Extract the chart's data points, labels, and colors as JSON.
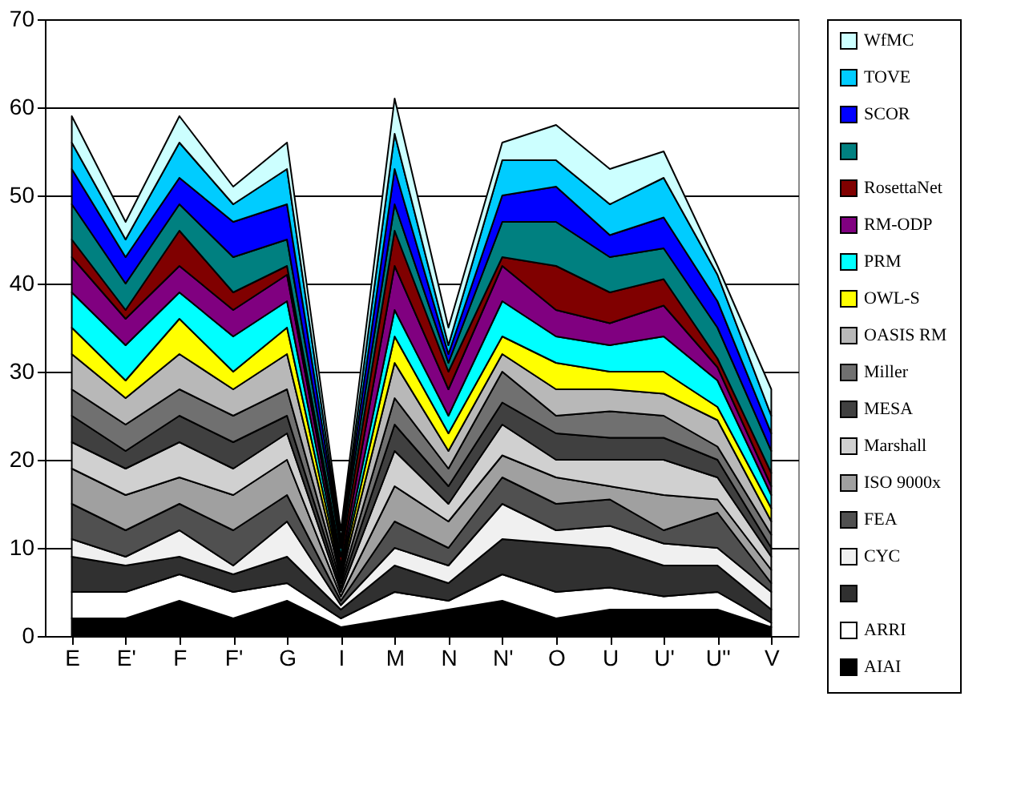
{
  "chart_data": {
    "type": "area",
    "stacked": true,
    "categories": [
      "E",
      "E'",
      "F",
      "F'",
      "G",
      "I",
      "M",
      "N",
      "N'",
      "O",
      "U",
      "U'",
      "U''",
      "V"
    ],
    "ylim": [
      0,
      70
    ],
    "yticks": [
      0,
      10,
      20,
      30,
      40,
      50,
      60,
      70
    ],
    "grid": "y",
    "legend": "right",
    "series": [
      {
        "name": "AIAI",
        "color": "#000000",
        "values": [
          2,
          2,
          4,
          2,
          4,
          1,
          2,
          3,
          4,
          2,
          3,
          3,
          3,
          1
        ]
      },
      {
        "name": "ARRI",
        "color": "#ffffff",
        "values": [
          3,
          3,
          3,
          3,
          2,
          1,
          3,
          1,
          3,
          3,
          2.5,
          1.5,
          2,
          0.5
        ]
      },
      {
        "color": "#303030",
        "values": [
          4,
          3,
          2,
          2,
          3,
          1,
          3,
          2,
          4,
          5.5,
          4.5,
          3.5,
          3,
          1.5
        ]
      },
      {
        "name": "CYC",
        "color": "#f0f0f0",
        "values": [
          2,
          1,
          3,
          1,
          4,
          0.5,
          2,
          2,
          4,
          1.5,
          2.5,
          2.5,
          2,
          2
        ]
      },
      {
        "name": "FEA",
        "color": "#505050",
        "values": [
          4,
          3,
          3,
          4,
          3,
          0.5,
          3,
          2,
          3,
          3,
          3,
          1.5,
          4,
          1
        ]
      },
      {
        "name": "ISO 9000x",
        "color": "#a0a0a0",
        "values": [
          4,
          4,
          3,
          4,
          4,
          0.5,
          4,
          3,
          2.5,
          3,
          1.5,
          4,
          1.5,
          1.5
        ]
      },
      {
        "name": "Marshall",
        "color": "#d0d0d0",
        "values": [
          3,
          3,
          4,
          3,
          3,
          0.5,
          4,
          2,
          3.5,
          2,
          3,
          4,
          2.5,
          1.5
        ]
      },
      {
        "name": "MESA",
        "color": "#404040",
        "values": [
          3,
          2,
          3,
          3,
          2,
          0.5,
          3,
          2,
          2.5,
          3,
          2.5,
          2.5,
          2,
          1
        ]
      },
      {
        "name": "Miller",
        "color": "#707070",
        "values": [
          3,
          3,
          3,
          3,
          3,
          0.5,
          3,
          2,
          3.5,
          2,
          3,
          2.5,
          1.5,
          1.5
        ]
      },
      {
        "name": "OASIS RM",
        "color": "#b8b8b8",
        "values": [
          4,
          3,
          4,
          3,
          4,
          0.5,
          4,
          2,
          2,
          3,
          2.5,
          2.5,
          3,
          1.5
        ]
      },
      {
        "name": "OWL-S",
        "color": "#ffff00",
        "values": [
          3,
          2,
          4,
          2,
          3,
          0.5,
          3,
          2,
          2,
          3,
          2,
          2.5,
          1.5,
          1.5
        ]
      },
      {
        "name": "PRM",
        "color": "#00ffff",
        "values": [
          4,
          4,
          3,
          4,
          3,
          0.5,
          3,
          2,
          4,
          3,
          3,
          4,
          3,
          1.5
        ]
      },
      {
        "name": "RM-ODP",
        "color": "#800080",
        "values": [
          4,
          3,
          3,
          3,
          3,
          0.5,
          5,
          3,
          4,
          3,
          2.5,
          3.5,
          1.5,
          1
        ]
      },
      {
        "name": "RosettaNet",
        "color": "#800000",
        "values": [
          2,
          1,
          4,
          2,
          1,
          1,
          4,
          2,
          1,
          5,
          3.5,
          3,
          1,
          1.5
        ]
      },
      {
        "color": "#008080",
        "values": [
          4,
          3,
          3,
          4,
          3,
          1,
          3,
          1,
          4,
          5,
          4,
          3.5,
          3.5,
          2.5
        ]
      },
      {
        "name": "SCOR",
        "color": "#0000ff",
        "values": [
          4,
          3,
          3,
          4,
          4,
          0.5,
          4,
          1,
          3,
          4,
          2.5,
          3.5,
          3,
          2
        ]
      },
      {
        "name": "TOVE",
        "color": "#00ccff",
        "values": [
          3,
          2,
          4,
          2,
          4,
          0.5,
          4,
          1,
          4,
          3,
          3.5,
          4.5,
          3,
          2
        ]
      },
      {
        "name": "WfMC",
        "color": "#ccffff",
        "values": [
          3,
          2,
          3,
          2,
          3,
          1,
          4,
          2,
          2,
          4,
          4,
          3,
          1,
          3
        ]
      }
    ]
  }
}
